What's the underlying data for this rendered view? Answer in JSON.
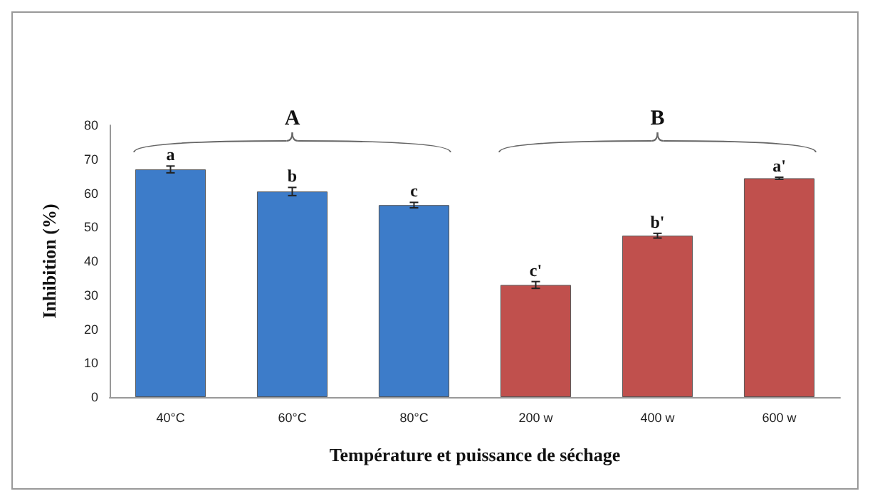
{
  "chart_data": {
    "type": "bar",
    "xlabel": "Température et puissance de séchage",
    "ylabel": "Inhibition (%)",
    "categories": [
      "40°C",
      "60°C",
      "80°C",
      "200 w",
      "400 w",
      "600 w"
    ],
    "values": [
      67,
      60.5,
      56.5,
      33,
      47.5,
      64.4
    ],
    "colors": [
      "#3d7cc9",
      "#3d7cc9",
      "#3d7cc9",
      "#c0504d",
      "#c0504d",
      "#c0504d"
    ],
    "errors": [
      1,
      1.2,
      0.8,
      1,
      0.7,
      0.3
    ],
    "ylim": [
      0,
      80
    ],
    "yticks": [
      0,
      10,
      20,
      30,
      40,
      50,
      60,
      70,
      80
    ],
    "grid": false,
    "annotations": [
      {
        "text": "a",
        "x": "40°C",
        "y": 68
      },
      {
        "text": "b",
        "x": "60°C",
        "y": 61.7
      },
      {
        "text": "c",
        "x": "80°C",
        "y": 57.3
      },
      {
        "text": "c'",
        "x": "200 w",
        "y": 34
      },
      {
        "text": "b'",
        "x": "400 w",
        "y": 48.2
      },
      {
        "text": "a'",
        "x": "600 w",
        "y": 64.7
      },
      "A",
      "B"
    ]
  }
}
